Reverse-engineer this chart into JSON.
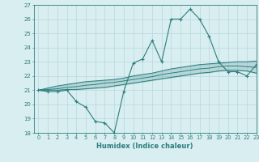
{
  "xlabel": "Humidex (Indice chaleur)",
  "x": [
    0,
    1,
    2,
    3,
    4,
    5,
    6,
    7,
    8,
    9,
    10,
    11,
    12,
    13,
    14,
    15,
    16,
    17,
    18,
    19,
    20,
    21,
    22,
    23
  ],
  "y_main": [
    21,
    20.9,
    20.9,
    21,
    20.2,
    19.8,
    18.8,
    18.7,
    18,
    20.9,
    22.9,
    23.2,
    24.5,
    23,
    26,
    26,
    26.7,
    26,
    24.8,
    23,
    22.3,
    22.3,
    22,
    22.8
  ],
  "y_upper": [
    21,
    21.15,
    21.3,
    21.4,
    21.5,
    21.6,
    21.65,
    21.7,
    21.75,
    21.85,
    22.0,
    22.1,
    22.2,
    22.35,
    22.5,
    22.6,
    22.7,
    22.8,
    22.85,
    22.9,
    22.95,
    23.0,
    23.0,
    23.05
  ],
  "y_mid": [
    21,
    21.05,
    21.1,
    21.2,
    21.25,
    21.35,
    21.4,
    21.5,
    21.55,
    21.65,
    21.75,
    21.85,
    21.95,
    22.1,
    22.2,
    22.3,
    22.4,
    22.5,
    22.55,
    22.65,
    22.7,
    22.7,
    22.65,
    22.6
  ],
  "y_lower": [
    21,
    21.0,
    21.0,
    21.05,
    21.05,
    21.1,
    21.15,
    21.2,
    21.3,
    21.4,
    21.5,
    21.6,
    21.7,
    21.8,
    21.9,
    22.0,
    22.1,
    22.2,
    22.25,
    22.35,
    22.4,
    22.4,
    22.35,
    22.2
  ],
  "color_main": "#2e7d7d",
  "bg_color": "#d8eef0",
  "grid_color": "#b8d8dc",
  "ylim": [
    18,
    27
  ],
  "xlim": [
    -0.5,
    23
  ],
  "yticks": [
    18,
    19,
    20,
    21,
    22,
    23,
    24,
    25,
    26,
    27
  ],
  "xticks": [
    0,
    1,
    2,
    3,
    4,
    5,
    6,
    7,
    8,
    9,
    10,
    11,
    12,
    13,
    14,
    15,
    16,
    17,
    18,
    19,
    20,
    21,
    22,
    23
  ]
}
